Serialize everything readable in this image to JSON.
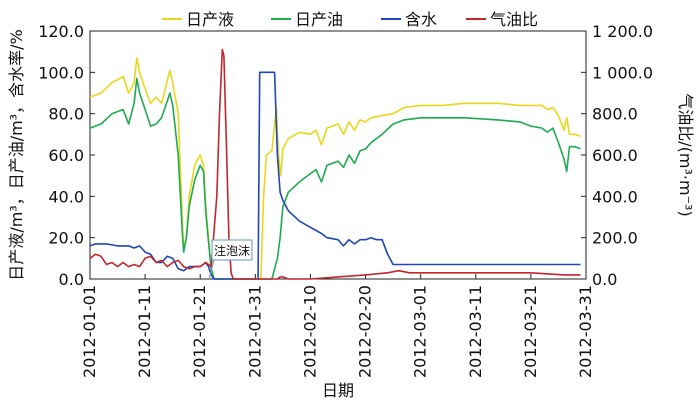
{
  "chart_data": {
    "type": "line",
    "xlabel": "日期",
    "ylabel_left": "日产液/m³，日产油/m³，含水率/%",
    "ylabel_right": "气油比/(m³·m⁻³)",
    "ylim_left": [
      0,
      120
    ],
    "ylim_right": [
      0,
      1200
    ],
    "y_ticks_left": [
      "0.0",
      "20.0",
      "40.0",
      "60.0",
      "80.0",
      "100.0",
      "120.0"
    ],
    "y_ticks_right": [
      "0.0",
      "200.0",
      "400.0",
      "600.0",
      "800.0",
      "1 000.0",
      "1 200.0"
    ],
    "x_ticks": [
      "2012-01-01",
      "2012-01-11",
      "2012-01-21",
      "2012-01-31",
      "2012-02-10",
      "2012-02-20",
      "2012-03-01",
      "2012-03-11",
      "2012-03-21",
      "2012-03-31"
    ],
    "annotation": {
      "text": "注泡沫",
      "x": 2012.0122,
      "y": 0
    },
    "series": [
      {
        "name": "日产液",
        "color": "#e8d81c",
        "axis": "left",
        "points": [
          [
            0,
            88
          ],
          [
            2,
            90
          ],
          [
            4,
            95
          ],
          [
            6,
            98
          ],
          [
            7,
            90
          ],
          [
            8,
            95
          ],
          [
            8.5,
            107
          ],
          [
            9,
            100
          ],
          [
            10,
            92
          ],
          [
            11,
            85
          ],
          [
            12,
            88
          ],
          [
            13,
            85
          ],
          [
            14,
            96
          ],
          [
            14.5,
            101
          ],
          [
            15,
            95
          ],
          [
            16,
            80
          ],
          [
            16.8,
            25
          ],
          [
            17,
            15
          ],
          [
            17.5,
            20
          ],
          [
            18,
            40
          ],
          [
            19,
            55
          ],
          [
            20,
            60
          ],
          [
            20.6,
            55
          ],
          [
            21,
            35
          ],
          [
            21.5,
            20
          ],
          [
            22,
            5
          ],
          [
            22.5,
            0
          ],
          [
            31,
            0
          ],
          [
            31.5,
            40
          ],
          [
            32,
            60
          ],
          [
            33,
            62
          ],
          [
            33.5,
            75
          ],
          [
            33.8,
            83
          ],
          [
            34.2,
            60
          ],
          [
            34.6,
            50
          ],
          [
            35,
            63
          ],
          [
            36,
            68
          ],
          [
            38,
            71
          ],
          [
            40,
            70
          ],
          [
            41,
            72
          ],
          [
            42,
            65
          ],
          [
            43,
            73
          ],
          [
            45,
            75
          ],
          [
            46,
            70
          ],
          [
            47,
            76
          ],
          [
            48,
            72
          ],
          [
            49,
            77
          ],
          [
            50,
            76
          ],
          [
            51,
            78
          ],
          [
            53,
            79
          ],
          [
            55,
            80
          ],
          [
            57,
            83
          ],
          [
            60,
            84
          ],
          [
            64,
            84
          ],
          [
            68,
            85
          ],
          [
            74,
            85
          ],
          [
            78,
            84
          ],
          [
            82,
            84
          ],
          [
            83,
            82
          ],
          [
            84,
            83
          ],
          [
            85,
            79
          ],
          [
            86,
            72
          ],
          [
            86.5,
            78
          ],
          [
            87,
            70
          ],
          [
            88,
            70
          ],
          [
            89,
            69
          ]
        ]
      },
      {
        "name": "日产油",
        "color": "#1eab50",
        "axis": "left",
        "points": [
          [
            0,
            73
          ],
          [
            2,
            75
          ],
          [
            4,
            80
          ],
          [
            6,
            82
          ],
          [
            7,
            75
          ],
          [
            8,
            85
          ],
          [
            8.5,
            97
          ],
          [
            9,
            90
          ],
          [
            10,
            82
          ],
          [
            11,
            74
          ],
          [
            12,
            75
          ],
          [
            13,
            78
          ],
          [
            14,
            86
          ],
          [
            14.5,
            90
          ],
          [
            15,
            84
          ],
          [
            16,
            60
          ],
          [
            16.8,
            20
          ],
          [
            17,
            13
          ],
          [
            17.5,
            20
          ],
          [
            18,
            35
          ],
          [
            19,
            48
          ],
          [
            20,
            55
          ],
          [
            20.6,
            52
          ],
          [
            21,
            33
          ],
          [
            21.5,
            18
          ],
          [
            22,
            5
          ],
          [
            22.5,
            0
          ],
          [
            33,
            0
          ],
          [
            34,
            10
          ],
          [
            34.5,
            20
          ],
          [
            35,
            35
          ],
          [
            36,
            42
          ],
          [
            38,
            47
          ],
          [
            40,
            51
          ],
          [
            41,
            53
          ],
          [
            42,
            47
          ],
          [
            43,
            55
          ],
          [
            45,
            57
          ],
          [
            46,
            54
          ],
          [
            47,
            60
          ],
          [
            48,
            56
          ],
          [
            49,
            62
          ],
          [
            50,
            63
          ],
          [
            51,
            66
          ],
          [
            53,
            70
          ],
          [
            55,
            75
          ],
          [
            57,
            77
          ],
          [
            60,
            78
          ],
          [
            64,
            78
          ],
          [
            68,
            78
          ],
          [
            74,
            77
          ],
          [
            78,
            76
          ],
          [
            80,
            74
          ],
          [
            82,
            73
          ],
          [
            83,
            71
          ],
          [
            84,
            73
          ],
          [
            85,
            66
          ],
          [
            86,
            58
          ],
          [
            86.5,
            52
          ],
          [
            87,
            64
          ],
          [
            88,
            64
          ],
          [
            89,
            63
          ]
        ]
      },
      {
        "name": "含水",
        "color": "#2046b8",
        "axis": "left",
        "points": [
          [
            0,
            16
          ],
          [
            1,
            17
          ],
          [
            3,
            17
          ],
          [
            5,
            16
          ],
          [
            7,
            16
          ],
          [
            8,
            15
          ],
          [
            9,
            16
          ],
          [
            10,
            13
          ],
          [
            11,
            12
          ],
          [
            12,
            8
          ],
          [
            13,
            8
          ],
          [
            14,
            11
          ],
          [
            15,
            10
          ],
          [
            16,
            5
          ],
          [
            17,
            4
          ],
          [
            18,
            6
          ],
          [
            19,
            6
          ],
          [
            20,
            6
          ],
          [
            21,
            8
          ],
          [
            21.5,
            6
          ],
          [
            22,
            2
          ],
          [
            22.5,
            0
          ],
          [
            30.5,
            0
          ],
          [
            30.8,
            100
          ],
          [
            33,
            100
          ],
          [
            33.5,
            100
          ],
          [
            34,
            60
          ],
          [
            34.5,
            42
          ],
          [
            35,
            38
          ],
          [
            36,
            33
          ],
          [
            38,
            28
          ],
          [
            40,
            25
          ],
          [
            42,
            22
          ],
          [
            43,
            20
          ],
          [
            45,
            19
          ],
          [
            46,
            16
          ],
          [
            47,
            19
          ],
          [
            48,
            17
          ],
          [
            49,
            19
          ],
          [
            50,
            19
          ],
          [
            51,
            20
          ],
          [
            52,
            19
          ],
          [
            53,
            19
          ],
          [
            54,
            12
          ],
          [
            55,
            7
          ],
          [
            60,
            7
          ],
          [
            70,
            7
          ],
          [
            80,
            7
          ],
          [
            89,
            7
          ]
        ]
      },
      {
        "name": "气油比",
        "color": "#c4262e",
        "axis": "right",
        "points": [
          [
            0,
            100
          ],
          [
            1,
            120
          ],
          [
            2,
            110
          ],
          [
            3,
            70
          ],
          [
            4,
            80
          ],
          [
            5,
            60
          ],
          [
            6,
            80
          ],
          [
            7,
            60
          ],
          [
            8,
            70
          ],
          [
            9,
            60
          ],
          [
            10,
            100
          ],
          [
            11,
            110
          ],
          [
            12,
            80
          ],
          [
            13,
            90
          ],
          [
            14,
            60
          ],
          [
            15,
            80
          ],
          [
            16,
            90
          ],
          [
            17,
            60
          ],
          [
            18,
            50
          ],
          [
            19,
            60
          ],
          [
            20,
            60
          ],
          [
            21,
            80
          ],
          [
            21.5,
            70
          ],
          [
            22,
            60
          ],
          [
            23,
            400
          ],
          [
            23.5,
            800
          ],
          [
            24,
            1110
          ],
          [
            24.3,
            1080
          ],
          [
            24.8,
            600
          ],
          [
            25.2,
            200
          ],
          [
            25.6,
            30
          ],
          [
            26,
            0
          ],
          [
            34,
            0
          ],
          [
            34.5,
            10
          ],
          [
            35,
            10
          ],
          [
            36,
            0
          ],
          [
            40,
            0
          ],
          [
            45,
            10
          ],
          [
            50,
            20
          ],
          [
            54,
            30
          ],
          [
            56,
            40
          ],
          [
            58,
            30
          ],
          [
            60,
            30
          ],
          [
            70,
            30
          ],
          [
            80,
            30
          ],
          [
            86,
            20
          ],
          [
            89,
            20
          ]
        ]
      }
    ]
  }
}
